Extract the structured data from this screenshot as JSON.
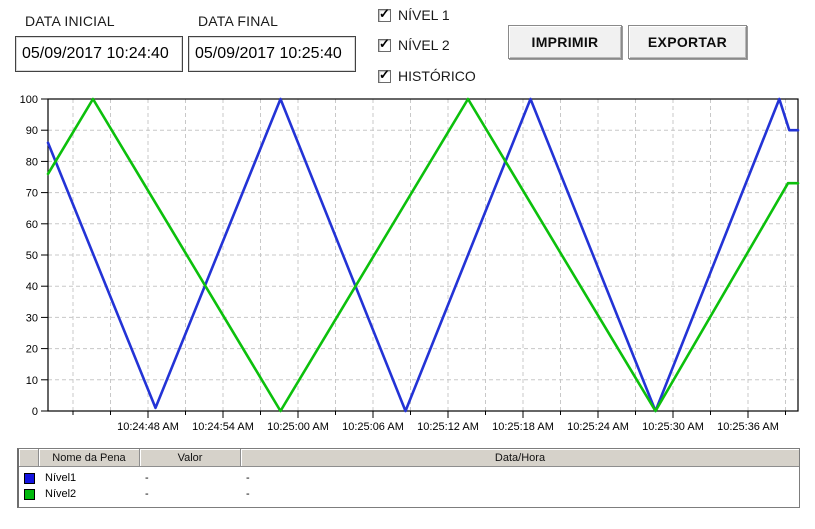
{
  "header": {
    "data_inicial_label": "DATA INICIAL",
    "data_inicial_value": "05/09/2017 10:24:40",
    "data_final_label": "DATA FINAL",
    "data_final_value": "05/09/2017 10:25:40",
    "checkboxes": [
      {
        "label": "NÍVEL 1",
        "checked": true
      },
      {
        "label": "NÍVEL 2",
        "checked": true
      },
      {
        "label": "HISTÓRICO",
        "checked": true
      }
    ],
    "buttons": {
      "imprimir": "IMPRIMIR",
      "exportar": "EXPORTAR"
    }
  },
  "icons": {
    "checkmark": "✓"
  },
  "chart_data": {
    "type": "line",
    "title": "",
    "xlabel": "",
    "ylabel": "",
    "grid": true,
    "legend_position": "table-below",
    "colors": {
      "grid": "#c8c8c8",
      "axis": "#000000"
    },
    "y_axis": {
      "min": 0,
      "max": 100,
      "tick_step": 10
    },
    "x_axis": {
      "start_time": "10:24:40 AM",
      "end_time": "10:25:40 AM",
      "range_s": [
        0,
        60
      ],
      "grid_start_s": 2,
      "grid_step_s": 3,
      "ticks": [
        {
          "s": 8,
          "label": "10:24:48 AM"
        },
        {
          "s": 14,
          "label": "10:24:54 AM"
        },
        {
          "s": 20,
          "label": "10:25:00 AM"
        },
        {
          "s": 26,
          "label": "10:25:06 AM"
        },
        {
          "s": 32,
          "label": "10:25:12 AM"
        },
        {
          "s": 38,
          "label": "10:25:18 AM"
        },
        {
          "s": 44,
          "label": "10:25:24 AM"
        },
        {
          "s": 50,
          "label": "10:25:30 AM"
        },
        {
          "s": 56,
          "label": "10:25:36 AM"
        }
      ]
    },
    "series": [
      {
        "name": "Nível 1",
        "color": "#2333d6",
        "points": [
          [
            0,
            86
          ],
          [
            8.6,
            1
          ],
          [
            18.6,
            100
          ],
          [
            28.6,
            0
          ],
          [
            38.6,
            100
          ],
          [
            48.6,
            0
          ],
          [
            58.5,
            100
          ],
          [
            59.3,
            90
          ],
          [
            60,
            90
          ]
        ]
      },
      {
        "name": "Nível 2",
        "color": "#0cc00c",
        "points": [
          [
            0,
            76
          ],
          [
            3.6,
            100
          ],
          [
            18.6,
            0
          ],
          [
            33.6,
            100
          ],
          [
            48.6,
            0
          ],
          [
            59.2,
            73
          ],
          [
            60,
            73
          ]
        ]
      }
    ]
  },
  "table": {
    "columns": [
      "",
      "Nome da Pena",
      "Valor",
      "Data/Hora"
    ],
    "rows": [
      {
        "color": "#1414e0",
        "name": "Nível1",
        "valor": "-",
        "data_hora": "-"
      },
      {
        "color": "#00b80c",
        "name": "Nível2",
        "valor": "-",
        "data_hora": "-"
      }
    ]
  }
}
